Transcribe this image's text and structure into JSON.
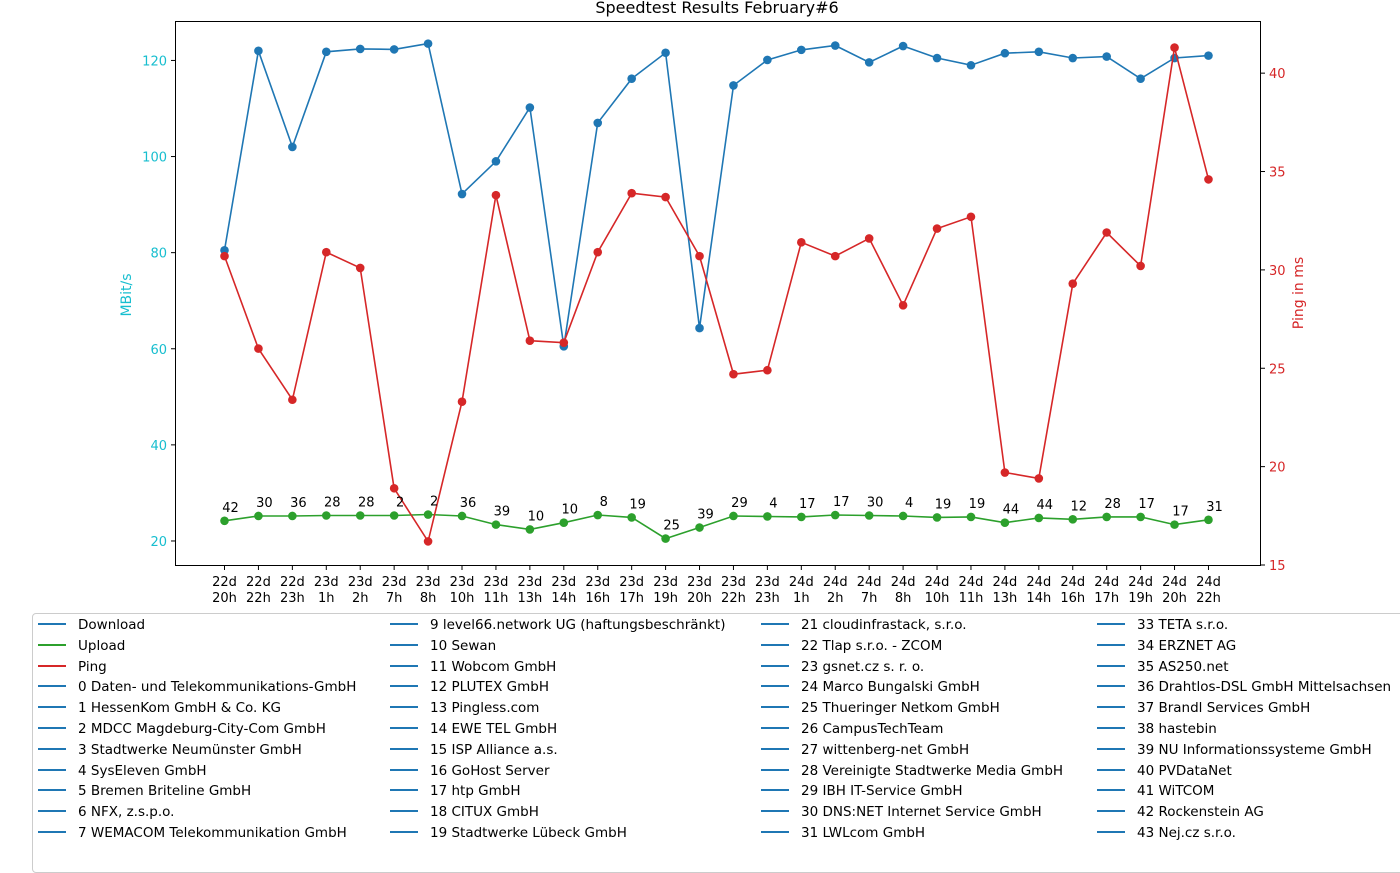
{
  "chart_data": {
    "type": "line",
    "title": "Speedtest Results February#6",
    "ylabel": "MBit/s",
    "y2label": "Ping in ms",
    "ylim": [
      15,
      128
    ],
    "y2lim": [
      15,
      42.6
    ],
    "yticks": [
      20,
      40,
      60,
      80,
      100,
      120
    ],
    "y2ticks": [
      15,
      20,
      25,
      30,
      35,
      40
    ],
    "categories": [
      [
        "22d",
        "20h"
      ],
      [
        "22d",
        "22h"
      ],
      [
        "22d",
        "23h"
      ],
      [
        "23d",
        "1h"
      ],
      [
        "23d",
        "2h"
      ],
      [
        "23d",
        "7h"
      ],
      [
        "23d",
        "8h"
      ],
      [
        "23d",
        "10h"
      ],
      [
        "23d",
        "11h"
      ],
      [
        "23d",
        "13h"
      ],
      [
        "23d",
        "14h"
      ],
      [
        "23d",
        "16h"
      ],
      [
        "23d",
        "17h"
      ],
      [
        "23d",
        "19h"
      ],
      [
        "23d",
        "20h"
      ],
      [
        "23d",
        "22h"
      ],
      [
        "23d",
        "23h"
      ],
      [
        "24d",
        "1h"
      ],
      [
        "24d",
        "2h"
      ],
      [
        "24d",
        "7h"
      ],
      [
        "24d",
        "8h"
      ],
      [
        "24d",
        "10h"
      ],
      [
        "24d",
        "11h"
      ],
      [
        "24d",
        "13h"
      ],
      [
        "24d",
        "14h"
      ],
      [
        "24d",
        "16h"
      ],
      [
        "24d",
        "17h"
      ],
      [
        "24d",
        "19h"
      ],
      [
        "24d",
        "20h"
      ],
      [
        "24d",
        "22h"
      ]
    ],
    "series": [
      {
        "name": "Download",
        "axis": "left",
        "color": "#1f77b4",
        "values": [
          80.5,
          122,
          102,
          121.8,
          122.4,
          122.3,
          123.5,
          92.2,
          99,
          110.2,
          60.5,
          107,
          116.2,
          121.6,
          64.3,
          114.8,
          120.1,
          122.2,
          123.1,
          119.6,
          123,
          120.5,
          119,
          121.5,
          121.8,
          120.5,
          120.8,
          116.2,
          120.5,
          121
        ]
      },
      {
        "name": "Upload",
        "axis": "left",
        "color": "#2ca02c",
        "values": [
          24.2,
          25.2,
          25.2,
          25.3,
          25.3,
          25.3,
          25.5,
          25.2,
          23.4,
          22.4,
          23.8,
          25.4,
          24.9,
          20.5,
          22.8,
          25.2,
          25.1,
          25,
          25.4,
          25.3,
          25.2,
          24.9,
          25,
          23.8,
          24.8,
          24.5,
          25,
          25,
          23.4,
          24.4
        ]
      },
      {
        "name": "Ping",
        "axis": "right",
        "color": "#d62728",
        "values": [
          30.7,
          26,
          23.4,
          30.9,
          30.1,
          18.9,
          16.2,
          23.3,
          33.8,
          26.4,
          26.3,
          30.9,
          33.9,
          33.7,
          30.7,
          24.7,
          24.9,
          31.4,
          30.7,
          31.6,
          28.2,
          32.1,
          32.7,
          19.7,
          19.4,
          29.3,
          31.9,
          30.2,
          41.3,
          34.6
        ]
      }
    ],
    "point_labels": [
      42,
      30,
      36,
      28,
      28,
      2,
      2,
      36,
      39,
      10,
      10,
      8,
      19,
      25,
      39,
      29,
      4,
      17,
      17,
      30,
      4,
      19,
      19,
      44,
      44,
      12,
      28,
      17,
      17,
      31
    ],
    "label_color": "#000000",
    "legend_position": "below",
    "legend_swatch_color": "#1f77b4",
    "legend_columns": [
      [
        "Download",
        "Upload",
        "Ping",
        "0 Daten- und Telekommunikations-GmbH",
        "1 HessenKom GmbH & Co. KG",
        "2 MDCC Magdeburg-City-Com GmbH",
        "3 Stadtwerke Neumünster GmbH",
        "4 SysEleven GmbH",
        "5 Bremen Briteline GmbH",
        "6 NFX, z.s.p.o.",
        "7 WEMACOM Telekommunikation GmbH"
      ],
      [
        "9 level66.network UG (haftungsbeschränkt)",
        "10 Sewan",
        "11 Wobcom GmbH",
        "12 PLUTEX GmbH",
        "13 Pingless.com",
        "14 EWE TEL GmbH",
        "15 ISP Alliance a.s.",
        "16 GoHost Server",
        "17 htp GmbH",
        "18 CITUX GmbH",
        "19 Stadtwerke Lübeck GmbH"
      ],
      [
        "21 cloudinfrastack, s.r.o.",
        "22 Tlap s.r.o. - ZCOM",
        "23 gsnet.cz s. r. o.",
        "24 Marco Bungalski GmbH",
        "25 Thueringer Netkom GmbH",
        "26 CampusTechTeam",
        "27 wittenberg-net GmbH",
        "28 Vereinigte Stadtwerke Media GmbH",
        "29 IBH IT-Service GmbH",
        "30 DNS:NET Internet Service GmbH",
        "31 LWLcom GmbH"
      ],
      [
        "33 TETA s.r.o.",
        "34 ERZNET AG",
        "35 AS250.net",
        "36 Drahtlos-DSL GmbH Mittelsachsen",
        "37 Brandl Services GmbH",
        "38 hastebin",
        "39 NU Informationssysteme GmbH",
        "40 PVDataNet",
        "41 WiTCOM",
        "42 Rockenstein AG",
        "43 Nej.cz s.r.o."
      ]
    ]
  },
  "colors": {
    "left_axis": "#17becf",
    "right_axis": "#d62728"
  }
}
